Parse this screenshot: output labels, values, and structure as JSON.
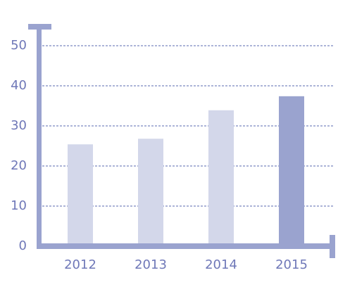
{
  "chart_data": {
    "type": "bar",
    "categories": [
      "2012",
      "2013",
      "2014",
      "2015"
    ],
    "values": [
      25.4,
      26.8,
      33.9,
      37.4
    ],
    "colors": [
      "#d3d7ea",
      "#d3d7ea",
      "#d3d7ea",
      "#9aa3cf"
    ],
    "ylim": [
      0,
      55
    ],
    "yticks": [
      0,
      10,
      20,
      30,
      40,
      50
    ],
    "grid": true
  }
}
